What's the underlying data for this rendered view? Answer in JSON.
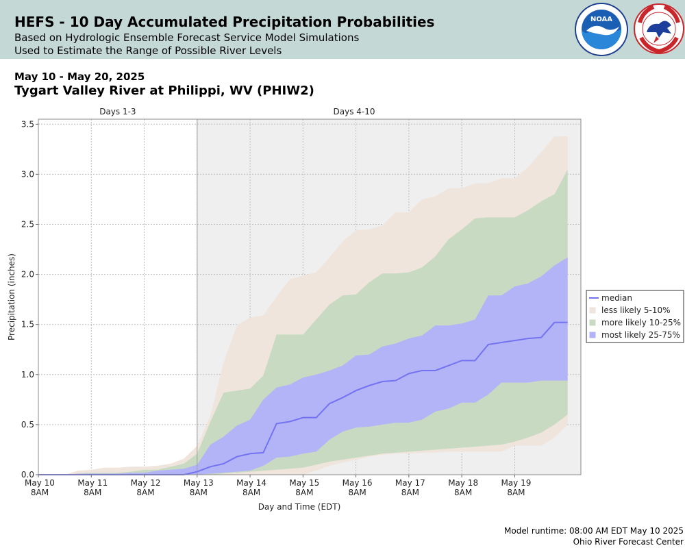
{
  "header": {
    "title": "HEFS - 10 Day Accumulated Precipitation Probabilities",
    "subtitle_1": "Based on Hydrologic Ensemble Forecast Service Model Simulations",
    "subtitle_2": "Used to Estimate the Range of Possible River Levels",
    "logos": [
      "noaa-logo",
      "national-weather-service-logo"
    ]
  },
  "date_range": "May 10 - May 20, 2025",
  "location": "Tygart Valley River at Philippi, WV (PHIW2)",
  "footer": {
    "model_runtime": "Model runtime: 08:00 AM EDT May 10 2025",
    "center": "Ohio River Forecast Center"
  },
  "colors": {
    "header_bg": "#c4d8d6",
    "median": "#7373f2",
    "band_5_10": "#efe5dc",
    "band_10_25": "#c8dbc2",
    "band_25_75": "#b3b3f8",
    "shaded_period_bg": "#efefef"
  },
  "chart_data": {
    "type": "area",
    "xlabel": "Day and Time (EDT)",
    "ylabel": "Precipitation (inches)",
    "ylim": [
      0,
      3.55
    ],
    "xlim": [
      0,
      10.25
    ],
    "x_unit": "days since May 10 8AM",
    "yticks": [
      "0.0",
      "0.5",
      "1.0",
      "1.5",
      "2.0",
      "2.5",
      "3.0",
      "3.5"
    ],
    "xticks": [
      {
        "x": 0,
        "line1": "May 10",
        "line2": "8AM"
      },
      {
        "x": 1,
        "line1": "May 11",
        "line2": "8AM"
      },
      {
        "x": 2,
        "line1": "May 12",
        "line2": "8AM"
      },
      {
        "x": 3,
        "line1": "May 13",
        "line2": "8AM"
      },
      {
        "x": 4,
        "line1": "May 14",
        "line2": "8AM"
      },
      {
        "x": 5,
        "line1": "May 15",
        "line2": "8AM"
      },
      {
        "x": 6,
        "line1": "May 16",
        "line2": "8AM"
      },
      {
        "x": 7,
        "line1": "May 17",
        "line2": "8AM"
      },
      {
        "x": 8,
        "line1": "May 18",
        "line2": "8AM"
      },
      {
        "x": 9,
        "line1": "May 19",
        "line2": "8AM"
      }
    ],
    "periods": [
      {
        "label": "Days 1-3",
        "start": 0,
        "end": 3,
        "shaded": false
      },
      {
        "label": "Days 4-10",
        "start": 3,
        "end": 10.25,
        "shaded": true
      }
    ],
    "grid": true,
    "legend_position": "right",
    "legend": [
      {
        "label": "median",
        "kind": "line",
        "color": "#7373f2"
      },
      {
        "label": "less likely 5-10%",
        "kind": "patch",
        "color": "#efe5dc"
      },
      {
        "label": "more likely 10-25%",
        "kind": "patch",
        "color": "#c8dbc2"
      },
      {
        "label": "most likely 25-75%",
        "kind": "patch",
        "color": "#b3b3f8"
      }
    ],
    "x": [
      0,
      0.25,
      0.5,
      0.75,
      1,
      1.25,
      1.5,
      1.75,
      2,
      2.25,
      2.5,
      2.75,
      3,
      3.25,
      3.5,
      3.75,
      4,
      4.25,
      4.5,
      4.75,
      5,
      5.25,
      5.5,
      5.75,
      6,
      6.25,
      6.5,
      6.75,
      7,
      7.25,
      7.5,
      7.75,
      8,
      8.25,
      8.5,
      8.75,
      9,
      9.25,
      9.5,
      9.75,
      10
    ],
    "series": {
      "p5": [
        0,
        0,
        0,
        0,
        0,
        0,
        0,
        0,
        0,
        0,
        0,
        0,
        0,
        0,
        0,
        0,
        0,
        0,
        0,
        0,
        0,
        0.04,
        0.09,
        0.12,
        0.15,
        0.18,
        0.2,
        0.21,
        0.21,
        0.22,
        0.22,
        0.23,
        0.23,
        0.23,
        0.23,
        0.23,
        0.29,
        0.29,
        0.29,
        0.37,
        0.5
      ],
      "p10": [
        0,
        0,
        0,
        0,
        0,
        0,
        0,
        0,
        0,
        0,
        0,
        0,
        0,
        0,
        0.01,
        0.02,
        0.03,
        0.04,
        0.05,
        0.06,
        0.07,
        0.1,
        0.13,
        0.15,
        0.17,
        0.19,
        0.21,
        0.22,
        0.23,
        0.24,
        0.25,
        0.26,
        0.27,
        0.28,
        0.29,
        0.3,
        0.33,
        0.37,
        0.42,
        0.5,
        0.6
      ],
      "p25": [
        0,
        0,
        0,
        0,
        0,
        0,
        0,
        0,
        0,
        0,
        0,
        0,
        0,
        0.01,
        0.02,
        0.03,
        0.04,
        0.09,
        0.17,
        0.18,
        0.21,
        0.23,
        0.35,
        0.43,
        0.47,
        0.48,
        0.5,
        0.52,
        0.52,
        0.55,
        0.63,
        0.66,
        0.72,
        0.72,
        0.8,
        0.92,
        0.92,
        0.92,
        0.94,
        0.94,
        0.94
      ],
      "median": [
        0,
        0,
        0,
        0,
        0,
        0,
        0,
        0,
        0,
        0,
        0,
        0,
        0.03,
        0.08,
        0.11,
        0.18,
        0.21,
        0.22,
        0.51,
        0.53,
        0.57,
        0.57,
        0.71,
        0.77,
        0.84,
        0.89,
        0.93,
        0.94,
        1.01,
        1.04,
        1.04,
        1.09,
        1.14,
        1.14,
        1.3,
        1.32,
        1.34,
        1.36,
        1.37,
        1.52,
        1.52
      ],
      "p75": [
        0,
        0,
        0,
        0.01,
        0.01,
        0.01,
        0.01,
        0.02,
        0.02,
        0.04,
        0.05,
        0.06,
        0.1,
        0.3,
        0.38,
        0.49,
        0.55,
        0.75,
        0.87,
        0.9,
        0.97,
        1.0,
        1.04,
        1.09,
        1.19,
        1.2,
        1.28,
        1.31,
        1.36,
        1.39,
        1.49,
        1.49,
        1.51,
        1.55,
        1.79,
        1.79,
        1.88,
        1.91,
        1.98,
        2.09,
        2.17
      ],
      "p90": [
        0,
        0,
        0,
        0.01,
        0.02,
        0.02,
        0.02,
        0.03,
        0.05,
        0.05,
        0.08,
        0.11,
        0.21,
        0.53,
        0.82,
        0.84,
        0.86,
        0.99,
        1.4,
        1.4,
        1.4,
        1.55,
        1.7,
        1.79,
        1.8,
        1.92,
        2.01,
        2.01,
        2.02,
        2.07,
        2.18,
        2.35,
        2.45,
        2.56,
        2.57,
        2.57,
        2.57,
        2.64,
        2.73,
        2.8,
        3.05
      ],
      "p95": [
        0,
        0,
        0,
        0.04,
        0.05,
        0.07,
        0.07,
        0.08,
        0.08,
        0.09,
        0.11,
        0.16,
        0.29,
        0.59,
        1.12,
        1.49,
        1.57,
        1.59,
        1.78,
        1.95,
        1.99,
        2.02,
        2.17,
        2.33,
        2.44,
        2.45,
        2.49,
        2.62,
        2.62,
        2.75,
        2.78,
        2.86,
        2.86,
        2.91,
        2.91,
        2.96,
        2.96,
        3.07,
        3.22,
        3.38,
        3.38
      ]
    }
  }
}
